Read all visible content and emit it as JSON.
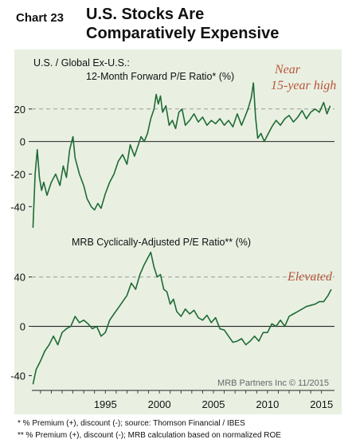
{
  "header": {
    "chart_number": "Chart 23",
    "title_line1": "U.S. Stocks Are",
    "title_line2": "Comparatively Expensive"
  },
  "colors": {
    "background": "#e9f0e2",
    "line": "#1f6b35",
    "annotation": "#b8553a",
    "gridline": "#9a9a9a"
  },
  "chart_data": [
    {
      "type": "line",
      "title_line1": "U.S. / Global Ex-U.S.:",
      "title_line2": "12-Month Forward P/E Ratio* (%)",
      "yticks": [
        20,
        0,
        -20,
        -40
      ],
      "ylim": [
        -55,
        38
      ],
      "xlim": [
        1988.2,
        2016.2
      ],
      "dashed_reference": 20,
      "annotation_line1": "Near",
      "annotation_line2": "15-year high",
      "series": [
        {
          "x": [
            1988.3,
            1988.5,
            1988.7,
            1988.9,
            1989.1,
            1989.3,
            1989.6,
            1990.0,
            1990.4,
            1990.8,
            1991.1,
            1991.4,
            1991.7,
            1992.0,
            1992.2,
            1992.6,
            1993.0,
            1993.3,
            1993.7,
            1994.0,
            1994.3,
            1994.6,
            1995.0,
            1995.4,
            1995.8,
            1996.2,
            1996.6,
            1997.0,
            1997.3,
            1997.7,
            1998.0,
            1998.3,
            1998.6,
            1998.9,
            1999.2,
            1999.5,
            1999.7,
            1999.9,
            2000.1,
            2000.3,
            2000.6,
            2000.9,
            2001.2,
            2001.5,
            2001.8,
            2002.1,
            2002.4,
            2002.8,
            2003.2,
            2003.6,
            2004.0,
            2004.4,
            2004.8,
            2005.2,
            2005.6,
            2006.0,
            2006.4,
            2006.8,
            2007.2,
            2007.6,
            2007.9,
            2008.2,
            2008.5,
            2008.7,
            2008.9,
            2009.1,
            2009.4,
            2009.7,
            2010.0,
            2010.4,
            2010.8,
            2011.2,
            2011.6,
            2012.0,
            2012.4,
            2012.8,
            2013.2,
            2013.6,
            2014.0,
            2014.4,
            2014.8,
            2015.2,
            2015.5,
            2015.8
          ],
          "y": [
            -53,
            -20,
            -5,
            -22,
            -30,
            -25,
            -33,
            -25,
            -20,
            -27,
            -15,
            -22,
            -5,
            3,
            -10,
            -20,
            -27,
            -35,
            -40,
            -42,
            -38,
            -41,
            -32,
            -25,
            -20,
            -12,
            -8,
            -14,
            -2,
            -9,
            -3,
            3,
            0,
            5,
            14,
            20,
            29,
            23,
            28,
            18,
            22,
            10,
            13,
            8,
            18,
            20,
            10,
            13,
            17,
            12,
            15,
            10,
            13,
            11,
            14,
            10,
            13,
            9,
            17,
            10,
            15,
            20,
            27,
            36,
            15,
            2,
            5,
            0,
            4,
            9,
            13,
            10,
            14,
            16,
            12,
            15,
            19,
            14,
            18,
            20,
            18,
            24,
            17,
            22
          ]
        }
      ]
    },
    {
      "type": "line",
      "title": "MRB Cyclically-Adjusted P/E Ratio** (%)",
      "yticks": [
        40,
        0,
        -40
      ],
      "ylim": [
        -52,
        63
      ],
      "xlim": [
        1988.2,
        2016.2
      ],
      "dashed_reference": 40,
      "annotation": "Elevated",
      "source": "MRB Partners Inc © 11/2015",
      "xticks": [
        "1995",
        "2000",
        "2005",
        "2010",
        "2015"
      ],
      "xtick_values": [
        1995,
        2000,
        2005,
        2010,
        2015
      ],
      "series": [
        {
          "x": [
            1988.3,
            1988.6,
            1989.0,
            1989.4,
            1989.8,
            1990.2,
            1990.6,
            1991.0,
            1991.4,
            1991.8,
            1992.2,
            1992.6,
            1993.0,
            1993.4,
            1993.8,
            1994.2,
            1994.6,
            1995.0,
            1995.4,
            1995.8,
            1996.2,
            1996.6,
            1997.0,
            1997.4,
            1997.8,
            1998.2,
            1998.6,
            1998.9,
            1999.2,
            1999.5,
            1999.8,
            2000.1,
            2000.4,
            2000.7,
            2001.0,
            2001.3,
            2001.6,
            2002.0,
            2002.4,
            2002.8,
            2003.2,
            2003.6,
            2004.0,
            2004.4,
            2004.8,
            2005.2,
            2005.6,
            2006.0,
            2006.4,
            2006.8,
            2007.2,
            2007.6,
            2008.0,
            2008.4,
            2008.8,
            2009.2,
            2009.6,
            2010.0,
            2010.4,
            2010.8,
            2011.2,
            2011.6,
            2012.0,
            2012.4,
            2012.8,
            2013.2,
            2013.6,
            2014.0,
            2014.4,
            2014.8,
            2015.2,
            2015.6,
            2015.9
          ],
          "y": [
            -47,
            -35,
            -28,
            -20,
            -15,
            -8,
            -15,
            -5,
            -2,
            0,
            8,
            3,
            5,
            2,
            -2,
            0,
            -8,
            -5,
            5,
            10,
            15,
            20,
            25,
            35,
            30,
            42,
            50,
            55,
            60,
            48,
            40,
            42,
            30,
            28,
            18,
            22,
            12,
            8,
            14,
            10,
            13,
            7,
            5,
            9,
            3,
            7,
            -2,
            -3,
            -8,
            -13,
            -12,
            -10,
            -15,
            -12,
            -8,
            -12,
            -5,
            -5,
            2,
            0,
            5,
            0,
            8,
            10,
            12,
            14,
            16,
            17,
            18,
            20,
            20,
            25,
            30
          ]
        }
      ]
    }
  ],
  "footnotes": {
    "note1": "*  % Premium (+), discount (-); source: Thomson Financial / IBES",
    "note2": "** % Premium (+), discount (-); MRB calculation based on normalized ROE"
  }
}
